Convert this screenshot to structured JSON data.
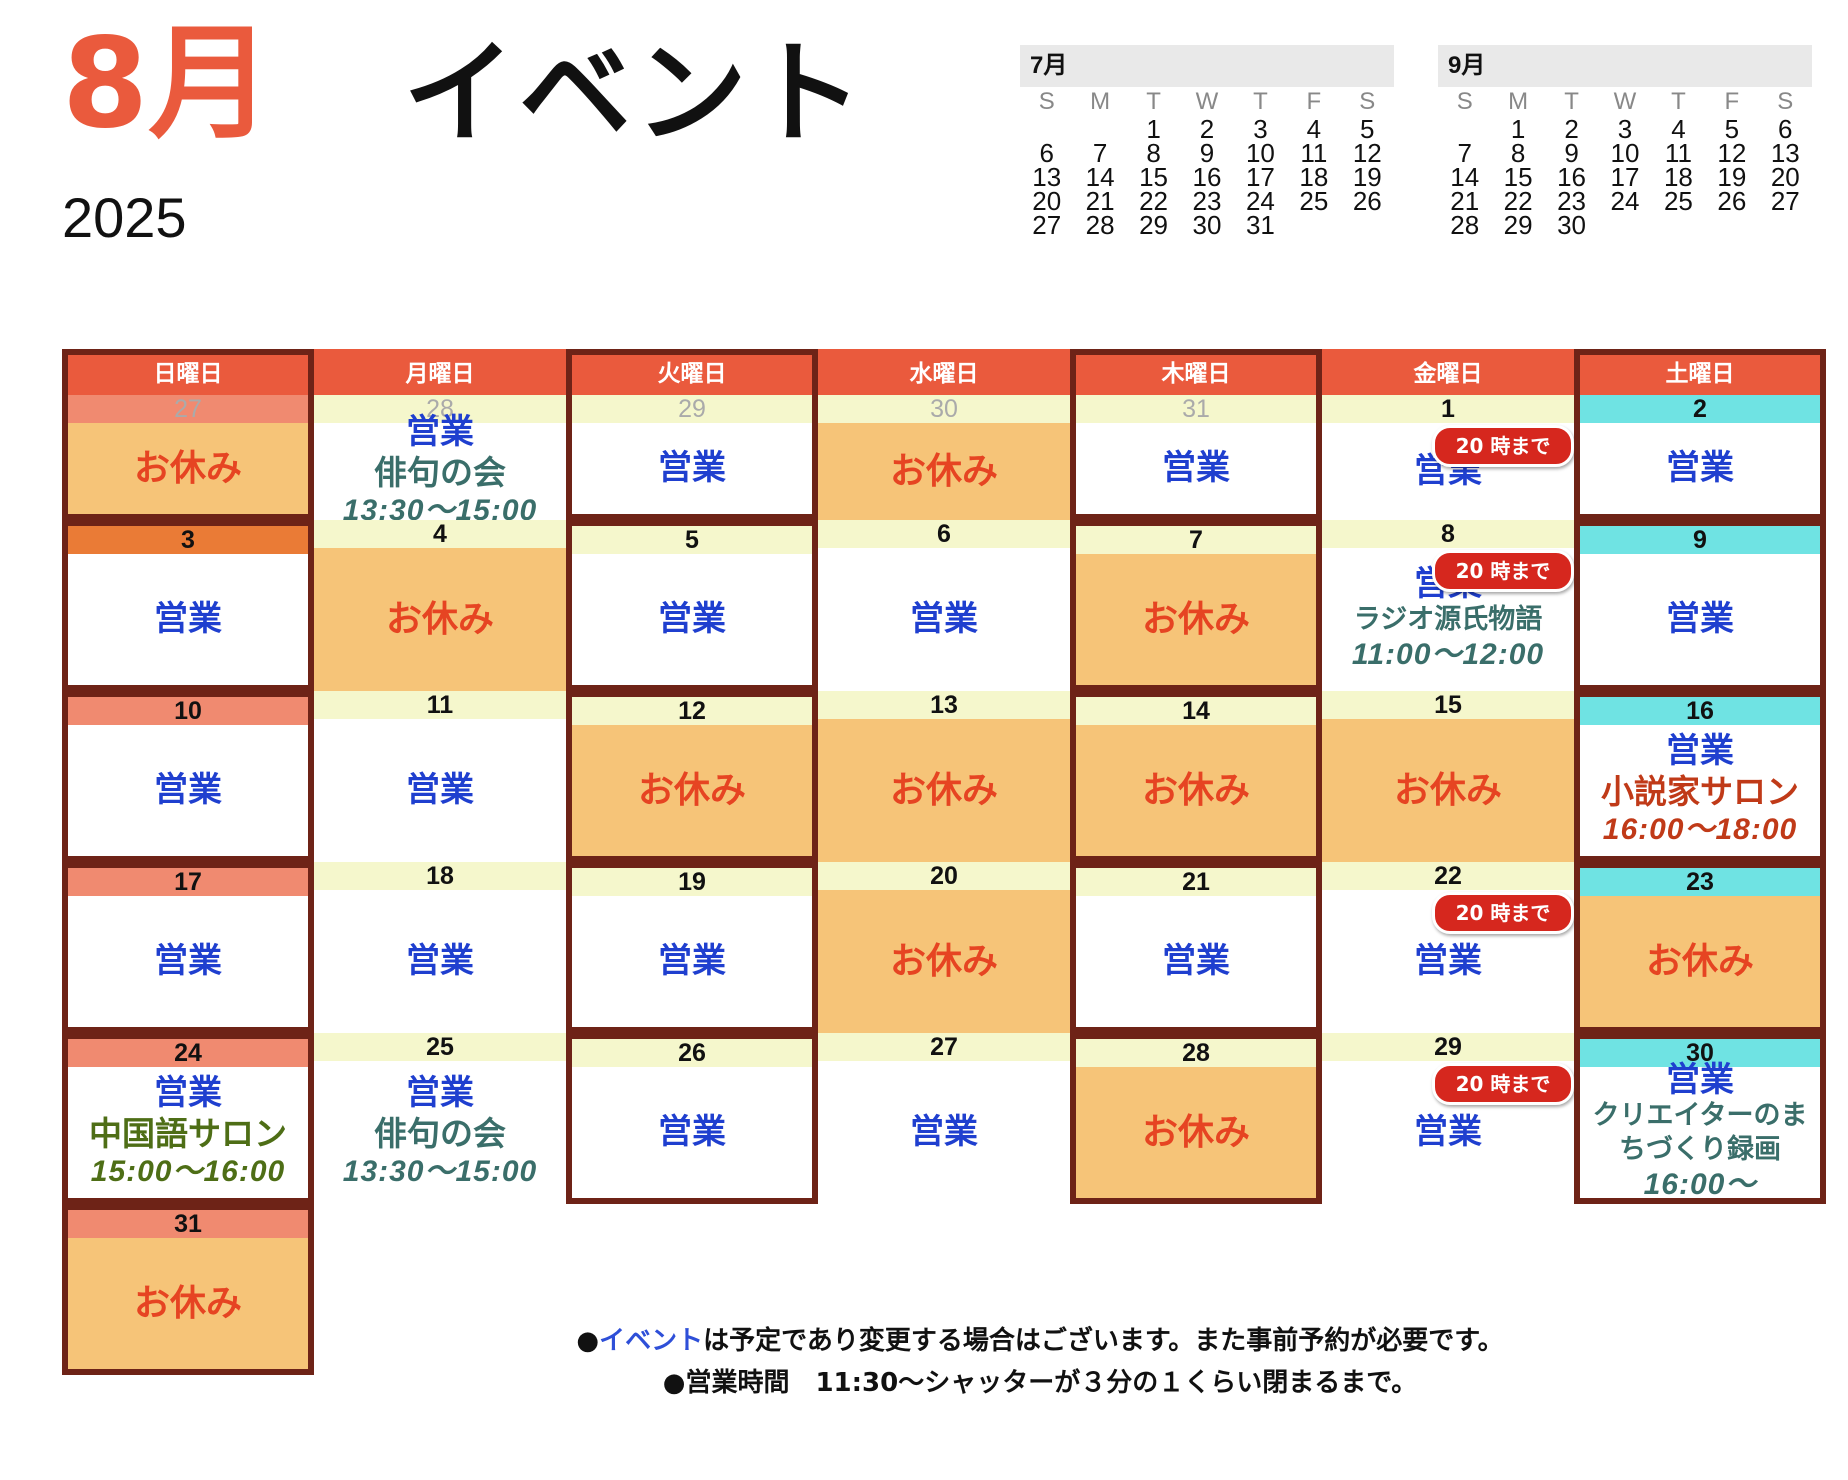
{
  "header": {
    "month": "8月",
    "title": "イベント",
    "year": "2025"
  },
  "mini_calendars": [
    {
      "title": "7月",
      "weekdays": [
        "S",
        "M",
        "T",
        "W",
        "T",
        "F",
        "S"
      ],
      "days": [
        "",
        "",
        "1",
        "2",
        "3",
        "4",
        "5",
        "6",
        "7",
        "8",
        "9",
        "10",
        "11",
        "12",
        "13",
        "14",
        "15",
        "16",
        "17",
        "18",
        "19",
        "20",
        "21",
        "22",
        "23",
        "24",
        "25",
        "26",
        "27",
        "28",
        "29",
        "30",
        "31",
        "",
        "",
        "",
        ""
      ]
    },
    {
      "title": "9月",
      "weekdays": [
        "S",
        "M",
        "T",
        "W",
        "T",
        "F",
        "S"
      ],
      "days": [
        "",
        "1",
        "2",
        "3",
        "4",
        "5",
        "6",
        "7",
        "8",
        "9",
        "10",
        "11",
        "12",
        "13",
        "14",
        "15",
        "16",
        "17",
        "18",
        "19",
        "20",
        "21",
        "22",
        "23",
        "24",
        "25",
        "26",
        "27",
        "28",
        "29",
        "30",
        "",
        "",
        "",
        ""
      ]
    }
  ],
  "weekday_headers": [
    "日曜日",
    "月曜日",
    "火曜日",
    "水曜日",
    "木曜日",
    "金曜日",
    "土曜日"
  ],
  "colors": {
    "header": "#EA5A3D",
    "sunday_bar": "#F08A70",
    "weekday_bar": "#F5F7CC",
    "saturday_bar": "#6FE3E3",
    "holiday_bar": "#EA7B36",
    "closed_fill": "#F6C478",
    "border": "#6E2317",
    "open_text": "#1F3FCF",
    "closed_text": "#E64422",
    "badge": "#D6271E"
  },
  "days": [
    {
      "date": "27",
      "dim": true,
      "status": "お休み"
    },
    {
      "date": "28",
      "dim": true,
      "status": "営業",
      "event": "俳句の会",
      "time": "13:30〜15:00"
    },
    {
      "date": "29",
      "dim": true,
      "status": "営業"
    },
    {
      "date": "30",
      "dim": true,
      "status": "お休み"
    },
    {
      "date": "31",
      "dim": true,
      "status": "営業"
    },
    {
      "date": "1",
      "status": "営業",
      "badge": "20 時まで"
    },
    {
      "date": "2",
      "status": "営業"
    },
    {
      "date": "3",
      "status": "営業"
    },
    {
      "date": "4",
      "status": "お休み"
    },
    {
      "date": "5",
      "status": "営業"
    },
    {
      "date": "6",
      "status": "営業"
    },
    {
      "date": "7",
      "status": "お休み"
    },
    {
      "date": "8",
      "status": "営業",
      "badge": "20 時まで",
      "event": "ラジオ源氏物語",
      "time": "11:00〜12:00"
    },
    {
      "date": "9",
      "status": "営業"
    },
    {
      "date": "10",
      "status": "営業"
    },
    {
      "date": "11",
      "status": "営業"
    },
    {
      "date": "12",
      "status": "お休み"
    },
    {
      "date": "13",
      "status": "お休み"
    },
    {
      "date": "14",
      "status": "お休み"
    },
    {
      "date": "15",
      "status": "お休み"
    },
    {
      "date": "16",
      "status": "営業",
      "event": "小説家サロン",
      "time": "16:00〜18:00"
    },
    {
      "date": "17",
      "status": "営業"
    },
    {
      "date": "18",
      "status": "営業"
    },
    {
      "date": "19",
      "status": "営業"
    },
    {
      "date": "20",
      "status": "お休み"
    },
    {
      "date": "21",
      "status": "営業"
    },
    {
      "date": "22",
      "status": "営業",
      "badge": "20 時まで"
    },
    {
      "date": "23",
      "status": "お休み"
    },
    {
      "date": "24",
      "status": "営業",
      "event": "中国語サロン",
      "time": "15:00〜16:00"
    },
    {
      "date": "25",
      "status": "営業",
      "event": "俳句の会",
      "time": "13:30〜15:00"
    },
    {
      "date": "26",
      "status": "営業"
    },
    {
      "date": "27",
      "status": "営業"
    },
    {
      "date": "28",
      "status": "お休み"
    },
    {
      "date": "29",
      "status": "営業",
      "badge": "20 時まで"
    },
    {
      "date": "30",
      "status": "営業",
      "event_line1": "クリエイターのま",
      "event_line2": "ちづくり録画",
      "time": "16:00〜"
    },
    {
      "date": "31",
      "status": "お休み"
    }
  ],
  "notes": {
    "line1_prefix": "●",
    "line1_link": "イベント",
    "line1_rest": "は予定であり変更する場合はございます。また事前予約が必要です。",
    "line2": "●営業時間　11:30〜シャッターが３分の１くらい閉まるまで。"
  }
}
